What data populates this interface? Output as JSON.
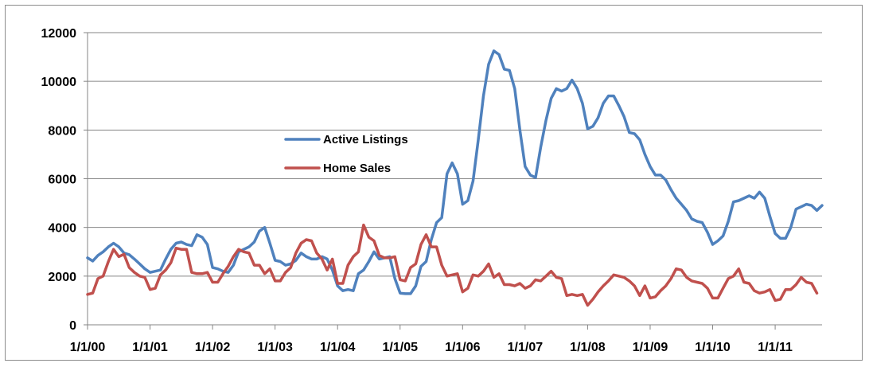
{
  "chart_data": {
    "type": "line",
    "title": "",
    "xlabel": "",
    "ylabel": "",
    "ylim": [
      0,
      12000
    ],
    "y_ticks": [
      "0",
      "2000",
      "4000",
      "6000",
      "8000",
      "10000",
      "12000"
    ],
    "x_ticks": [
      "1/1/00",
      "1/1/01",
      "1/1/02",
      "1/1/03",
      "1/1/04",
      "1/1/05",
      "1/1/06",
      "1/1/07",
      "1/1/08",
      "1/1/09",
      "1/1/10",
      "1/1/11"
    ],
    "x_start": "2000-01",
    "x_interval": "monthly",
    "grid": "horizontal",
    "legend_position": "center-left",
    "series": [
      {
        "name": "Active Listings",
        "color": "#4f81bd",
        "values": [
          2750,
          2620,
          2850,
          3000,
          3200,
          3350,
          3200,
          2950,
          2880,
          2700,
          2500,
          2300,
          2150,
          2200,
          2250,
          2700,
          3100,
          3350,
          3400,
          3300,
          3250,
          3700,
          3600,
          3300,
          2350,
          2300,
          2200,
          2150,
          2450,
          3000,
          3100,
          3200,
          3400,
          3850,
          4000,
          3350,
          2650,
          2600,
          2450,
          2500,
          2650,
          2950,
          2800,
          2700,
          2700,
          2800,
          2700,
          2250,
          1600,
          1400,
          1450,
          1400,
          2100,
          2250,
          2600,
          3000,
          2700,
          2750,
          2800,
          1900,
          1300,
          1280,
          1280,
          1600,
          2400,
          2600,
          3500,
          4200,
          4400,
          6200,
          6650,
          6200,
          4950,
          5100,
          5900,
          7600,
          9400,
          10700,
          11250,
          11100,
          10500,
          10450,
          9700,
          8000,
          6500,
          6150,
          6050,
          7300,
          8400,
          9300,
          9700,
          9600,
          9700,
          10050,
          9700,
          9100,
          8050,
          8150,
          8500,
          9100,
          9400,
          9400,
          9000,
          8550,
          7900,
          7850,
          7600,
          7000,
          6500,
          6150,
          6150,
          5950,
          5550,
          5200,
          4950,
          4700,
          4350,
          4250,
          4200,
          3800,
          3300,
          3450,
          3650,
          4250,
          5050,
          5100,
          5200,
          5300,
          5200,
          5450,
          5200,
          4450,
          3750,
          3550,
          3550,
          4000,
          4750,
          4850,
          4950,
          4900,
          4700,
          4900
        ]
      },
      {
        "name": "Home Sales",
        "color": "#c0504d",
        "values": [
          1250,
          1300,
          1900,
          2000,
          2600,
          3100,
          2800,
          2900,
          2350,
          2150,
          2000,
          1950,
          1450,
          1500,
          2050,
          2250,
          2550,
          3150,
          3100,
          3100,
          2150,
          2100,
          2100,
          2150,
          1750,
          1750,
          2100,
          2400,
          2800,
          3100,
          3000,
          2950,
          2450,
          2450,
          2100,
          2300,
          1800,
          1800,
          2150,
          2350,
          2950,
          3350,
          3500,
          3450,
          2950,
          2700,
          2250,
          2700,
          1700,
          1700,
          2450,
          2800,
          3000,
          4100,
          3600,
          3450,
          2850,
          2750,
          2750,
          2800,
          1850,
          1800,
          2350,
          2500,
          3300,
          3700,
          3200,
          3200,
          2450,
          2000,
          2050,
          2100,
          1350,
          1500,
          2050,
          2000,
          2200,
          2500,
          1950,
          2100,
          1650,
          1650,
          1600,
          1700,
          1500,
          1600,
          1850,
          1800,
          2000,
          2200,
          1950,
          1900,
          1200,
          1250,
          1200,
          1250,
          800,
          1050,
          1350,
          1600,
          1800,
          2050,
          2000,
          1950,
          1800,
          1600,
          1200,
          1600,
          1100,
          1150,
          1400,
          1600,
          1900,
          2300,
          2250,
          1950,
          1800,
          1750,
          1700,
          1500,
          1100,
          1100,
          1500,
          1900,
          2000,
          2300,
          1750,
          1700,
          1400,
          1300,
          1350,
          1450,
          1000,
          1050,
          1450,
          1450,
          1650,
          1950,
          1750,
          1700,
          1300
        ]
      }
    ]
  }
}
